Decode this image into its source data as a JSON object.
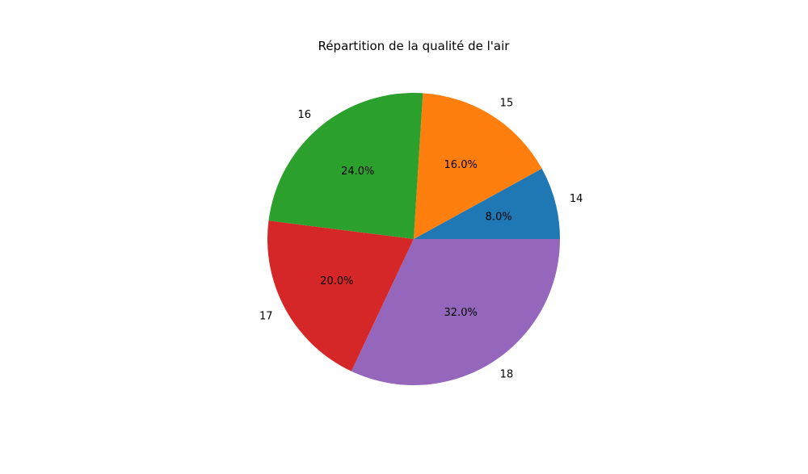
{
  "chart_data": {
    "type": "pie",
    "title": "Répartition de la qualité de l'air",
    "categories": [
      "14",
      "15",
      "16",
      "17",
      "18"
    ],
    "values": [
      8.0,
      16.0,
      24.0,
      20.0,
      32.0
    ],
    "value_labels": [
      "8.0%",
      "16.0%",
      "24.0%",
      "20.0%",
      "32.0%"
    ],
    "colors": [
      "#1f77b4",
      "#ff7f0e",
      "#2ca02c",
      "#d62728",
      "#9467bd"
    ],
    "start_angle_deg": 0,
    "direction": "counterclockwise",
    "legend": "none"
  }
}
